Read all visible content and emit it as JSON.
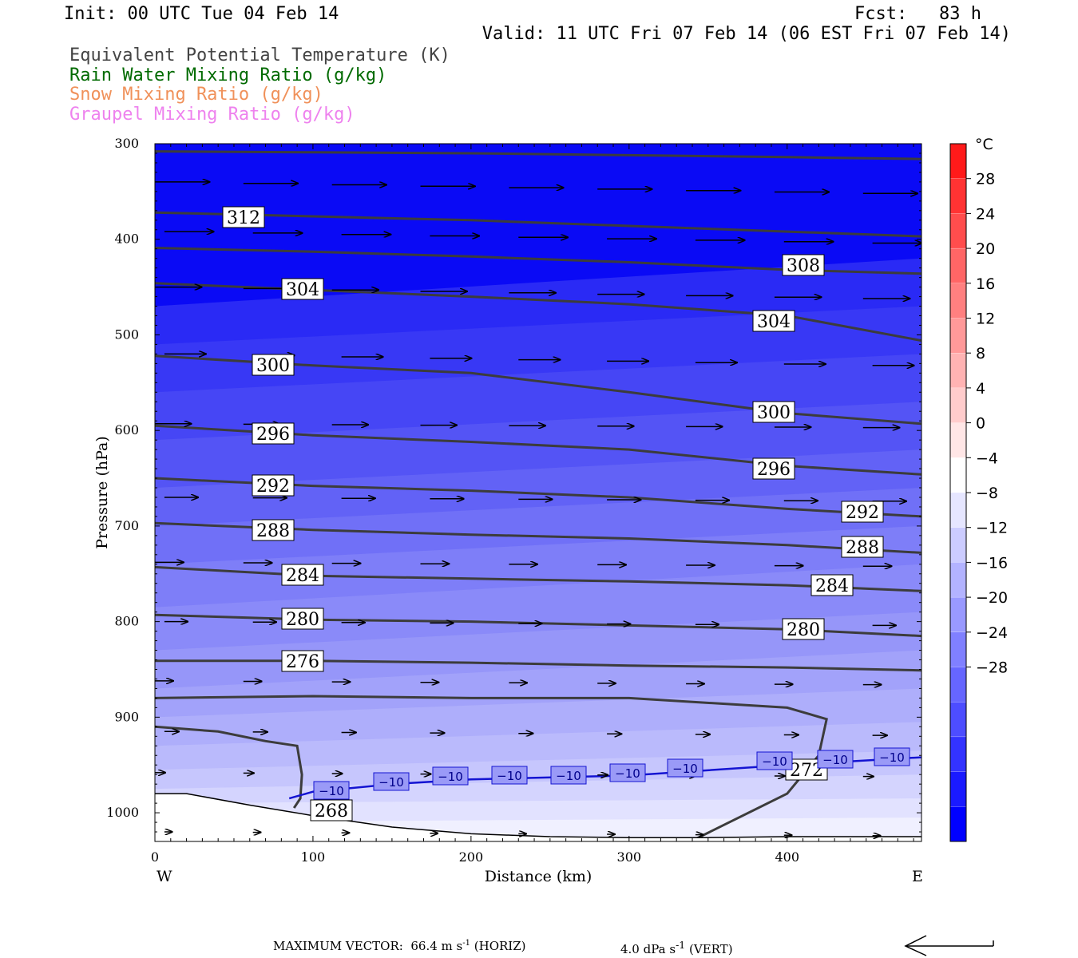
{
  "header": {
    "init": "Init: 00 UTC Tue 04 Feb 14",
    "fcst": "Fcst:   83 h",
    "valid": "Valid: 11 UTC Fri 07 Feb 14 (06 EST Fri 07 Feb 14)"
  },
  "legend": [
    {
      "label": "Equivalent Potential Temperature (K)",
      "color": "#444444"
    },
    {
      "label": "Rain Water Mixing Ratio (g/kg)",
      "color": "#006a00"
    },
    {
      "label": "Snow Mixing Ratio (g/kg)",
      "color": "#f0915a"
    },
    {
      "label": "Graupel Mixing Ratio (g/kg)",
      "color": "#ee82ee"
    }
  ],
  "chart_data": {
    "type": "cross-section",
    "xlabel": "Distance (km)",
    "ylabel": "Pressure (hPa)",
    "x_ticks": [
      0,
      100,
      200,
      300,
      400
    ],
    "y_ticks": [
      300,
      400,
      500,
      600,
      700,
      800,
      900,
      1000
    ],
    "xlim": [
      0,
      485
    ],
    "ylim": [
      300,
      1030
    ],
    "y_axis": "pressure, increasing downward",
    "west_label": "W",
    "east_label": "E",
    "theta_e_contours": [
      {
        "value": 312,
        "points": [
          [
            0,
            308
          ],
          [
            100,
            309
          ],
          [
            200,
            310
          ],
          [
            300,
            312
          ],
          [
            400,
            314
          ],
          [
            485,
            316
          ]
        ]
      },
      {
        "value": 308,
        "points": [
          [
            0,
            372
          ],
          [
            100,
            376
          ],
          [
            200,
            380
          ],
          [
            300,
            386
          ],
          [
            400,
            392
          ],
          [
            485,
            397
          ]
        ]
      },
      {
        "value": 304,
        "points": [
          [
            0,
            409
          ],
          [
            100,
            413
          ],
          [
            200,
            418
          ],
          [
            300,
            424
          ],
          [
            400,
            432
          ],
          [
            485,
            436
          ]
        ]
      },
      {
        "value": 300,
        "points": [
          [
            0,
            446
          ],
          [
            100,
            453
          ],
          [
            200,
            460
          ],
          [
            300,
            468
          ],
          [
            400,
            480
          ],
          [
            485,
            506
          ]
        ]
      },
      {
        "value": 296,
        "points": [
          [
            0,
            522
          ],
          [
            100,
            532
          ],
          [
            200,
            540
          ],
          [
            300,
            560
          ],
          [
            400,
            582
          ],
          [
            485,
            593
          ]
        ]
      },
      {
        "value": 292,
        "points": [
          [
            0,
            595
          ],
          [
            100,
            605
          ],
          [
            200,
            612
          ],
          [
            300,
            620
          ],
          [
            400,
            637
          ],
          [
            485,
            646
          ]
        ]
      },
      {
        "value": 288,
        "points": [
          [
            0,
            650
          ],
          [
            100,
            658
          ],
          [
            200,
            663
          ],
          [
            300,
            670
          ],
          [
            400,
            682
          ],
          [
            485,
            690
          ]
        ]
      },
      {
        "value": 284,
        "points": [
          [
            0,
            697
          ],
          [
            100,
            704
          ],
          [
            200,
            709
          ],
          [
            300,
            713
          ],
          [
            400,
            720
          ],
          [
            485,
            728
          ]
        ]
      },
      {
        "value": 280,
        "points": [
          [
            0,
            743
          ],
          [
            100,
            752
          ],
          [
            200,
            755
          ],
          [
            300,
            758
          ],
          [
            400,
            762
          ],
          [
            485,
            768
          ]
        ]
      },
      {
        "value": 276,
        "points": [
          [
            0,
            793
          ],
          [
            100,
            798
          ],
          [
            200,
            800
          ],
          [
            300,
            804
          ],
          [
            400,
            808
          ],
          [
            485,
            815
          ]
        ]
      },
      {
        "value": 272,
        "points": [
          [
            0,
            841
          ],
          [
            100,
            841
          ],
          [
            200,
            843
          ],
          [
            300,
            846
          ],
          [
            400,
            848
          ],
          [
            485,
            851
          ]
        ]
      },
      {
        "value": 268,
        "points": [
          [
            0,
            880
          ],
          [
            100,
            878
          ],
          [
            200,
            880
          ],
          [
            300,
            880
          ],
          [
            400,
            890
          ],
          [
            425,
            902
          ],
          [
            420,
            940
          ],
          [
            400,
            980
          ],
          [
            345,
            1025
          ]
        ]
      }
    ],
    "theta_e_labels": [
      312,
      308,
      304,
      304,
      300,
      300,
      296,
      296,
      292,
      292,
      288,
      288,
      284,
      284,
      280,
      280,
      276,
      272,
      268
    ],
    "temperature_contour": {
      "value": -10,
      "label": "-10",
      "points": [
        [
          85,
          985
        ],
        [
          100,
          978
        ],
        [
          150,
          970
        ],
        [
          200,
          965
        ],
        [
          300,
          961
        ],
        [
          400,
          950
        ],
        [
          485,
          942
        ]
      ]
    },
    "temperature_labels": [
      "-10",
      "-10",
      "-10",
      "-10",
      "-10",
      "-10",
      "-10",
      "-10",
      "-10",
      "-10"
    ],
    "colorbar": {
      "unit": "°C",
      "ticks": [
        "28",
        "24",
        "20",
        "16",
        "12",
        "8",
        "4",
        "0",
        "-4",
        "-8",
        "-12",
        "-16",
        "-20",
        "-24",
        "-28"
      ],
      "colors": [
        "#ff1a1a",
        "#ff3333",
        "#ff4d4d",
        "#ff6666",
        "#ff8080",
        "#ff9999",
        "#ffb3b3",
        "#ffcccc",
        "#ffe6e6",
        "#ffffff",
        "#e6e6ff",
        "#ccccff",
        "#b3b3ff",
        "#9999ff",
        "#8080ff",
        "#6666ff",
        "#4d4dff",
        "#3333ff",
        "#1a1aff",
        "#0000ff"
      ]
    },
    "wind_vectors": "horizontal winds from west (arrows pointing east), strongest near 350 hPa"
  },
  "footer": {
    "max_vector_label": "MAXIMUM VECTOR:",
    "horiz_value": "66.4 m s",
    "horiz_unit": " (HORIZ)",
    "vert_value": "4.0 dPa s",
    "vert_unit": " (VERT)",
    "sup": "-1"
  }
}
